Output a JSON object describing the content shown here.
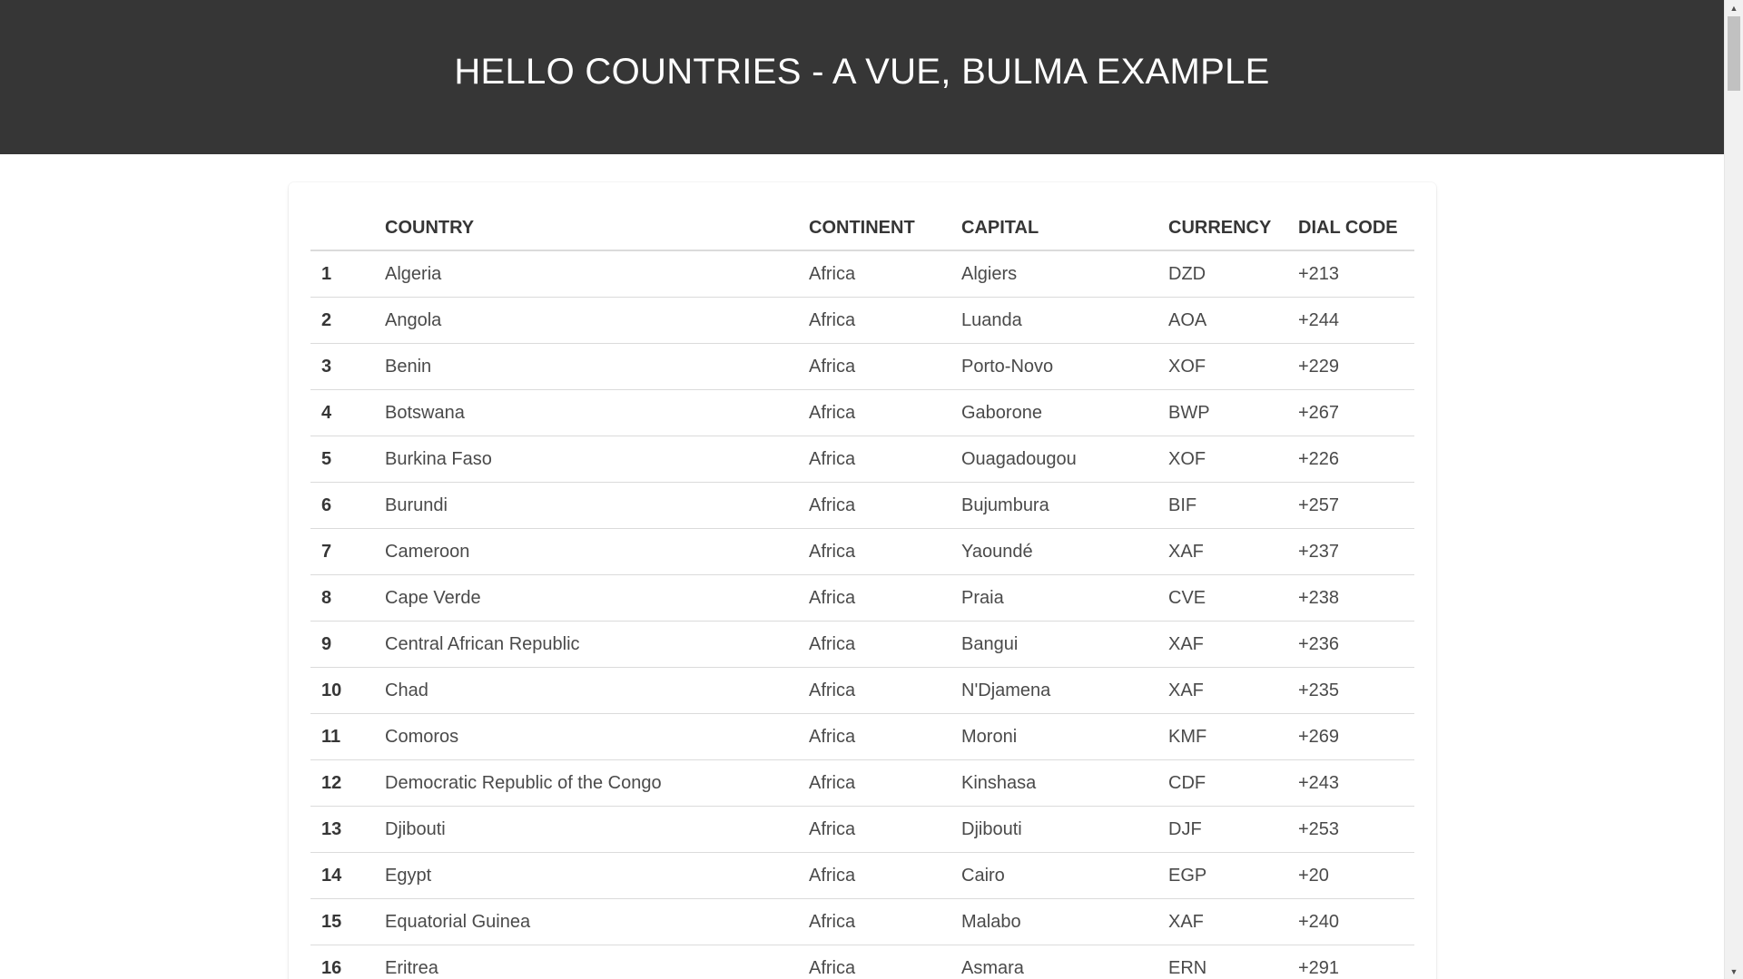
{
  "header": {
    "title": "HELLO COUNTRIES - A VUE, BULMA EXAMPLE"
  },
  "table": {
    "columns": [
      "",
      "COUNTRY",
      "CONTINENT",
      "CAPITAL",
      "CURRENCY",
      "DIAL CODE"
    ],
    "rows": [
      {
        "index": "1",
        "country": "Algeria",
        "continent": "Africa",
        "capital": "Algiers",
        "currency": "DZD",
        "dial": "+213"
      },
      {
        "index": "2",
        "country": "Angola",
        "continent": "Africa",
        "capital": "Luanda",
        "currency": "AOA",
        "dial": "+244"
      },
      {
        "index": "3",
        "country": "Benin",
        "continent": "Africa",
        "capital": "Porto-Novo",
        "currency": "XOF",
        "dial": "+229"
      },
      {
        "index": "4",
        "country": "Botswana",
        "continent": "Africa",
        "capital": "Gaborone",
        "currency": "BWP",
        "dial": "+267"
      },
      {
        "index": "5",
        "country": "Burkina Faso",
        "continent": "Africa",
        "capital": "Ouagadougou",
        "currency": "XOF",
        "dial": "+226"
      },
      {
        "index": "6",
        "country": "Burundi",
        "continent": "Africa",
        "capital": "Bujumbura",
        "currency": "BIF",
        "dial": "+257"
      },
      {
        "index": "7",
        "country": "Cameroon",
        "continent": "Africa",
        "capital": "Yaoundé",
        "currency": "XAF",
        "dial": "+237"
      },
      {
        "index": "8",
        "country": "Cape Verde",
        "continent": "Africa",
        "capital": "Praia",
        "currency": "CVE",
        "dial": "+238"
      },
      {
        "index": "9",
        "country": "Central African Republic",
        "continent": "Africa",
        "capital": "Bangui",
        "currency": "XAF",
        "dial": "+236"
      },
      {
        "index": "10",
        "country": "Chad",
        "continent": "Africa",
        "capital": "N'Djamena",
        "currency": "XAF",
        "dial": "+235"
      },
      {
        "index": "11",
        "country": "Comoros",
        "continent": "Africa",
        "capital": "Moroni",
        "currency": "KMF",
        "dial": "+269"
      },
      {
        "index": "12",
        "country": "Democratic Republic of the Congo",
        "continent": "Africa",
        "capital": "Kinshasa",
        "currency": "CDF",
        "dial": "+243"
      },
      {
        "index": "13",
        "country": "Djibouti",
        "continent": "Africa",
        "capital": "Djibouti",
        "currency": "DJF",
        "dial": "+253"
      },
      {
        "index": "14",
        "country": "Egypt",
        "continent": "Africa",
        "capital": "Cairo",
        "currency": "EGP",
        "dial": "+20"
      },
      {
        "index": "15",
        "country": "Equatorial Guinea",
        "continent": "Africa",
        "capital": "Malabo",
        "currency": "XAF",
        "dial": "+240"
      },
      {
        "index": "16",
        "country": "Eritrea",
        "continent": "Africa",
        "capital": "Asmara",
        "currency": "ERN",
        "dial": "+291"
      }
    ]
  },
  "scrollbar": {
    "up_icon": "scroll-up-arrow-icon",
    "down_icon": "scroll-down-arrow-icon"
  }
}
